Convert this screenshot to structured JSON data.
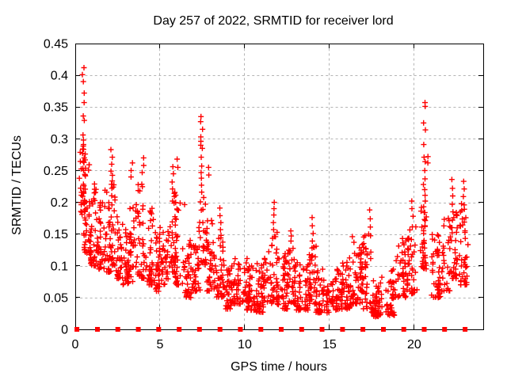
{
  "page": {
    "background": "#ffffff",
    "text_color": "#000000"
  },
  "chart_data": {
    "type": "scatter",
    "title": "Day 257 of 2022, SRMTID for receiver lord",
    "xlabel": "GPS time / hours",
    "ylabel": "SRMTID / TECUs",
    "xlim": [
      0,
      24.07
    ],
    "ylim": [
      0,
      0.45
    ],
    "xticks": {
      "values": [
        0,
        5,
        10,
        15,
        20
      ],
      "labels": [
        "0",
        "5",
        "10",
        "15",
        "20"
      ]
    },
    "yticks": {
      "values": [
        0,
        0.05,
        0.1,
        0.15,
        0.2,
        0.25,
        0.3,
        0.35,
        0.4,
        0.45
      ],
      "labels": [
        "0",
        "0.05",
        "0.1",
        "0.15",
        "0.2",
        "0.25",
        "0.3",
        "0.35",
        "0.4",
        "0.45"
      ]
    },
    "grid": true,
    "grid_color": "#b5b5b5",
    "border_color": "#000000",
    "marker": {
      "shape": "plus",
      "color": "#ff0000",
      "size": 7
    },
    "series": [
      {
        "name": "srmtid",
        "kind": "binned_scatter",
        "seed": 20220257,
        "bins": [
          [
            0.3,
            0.65,
            0.18,
            0.3,
            33
          ],
          [
            0.55,
            0.9,
            0.12,
            0.27,
            45
          ],
          [
            0.9,
            1.3,
            0.1,
            0.23,
            40
          ],
          [
            1.3,
            1.7,
            0.095,
            0.2,
            33
          ],
          [
            1.7,
            2.1,
            0.09,
            0.22,
            33
          ],
          [
            2.1,
            2.45,
            0.1,
            0.25,
            30
          ],
          [
            2.45,
            2.8,
            0.08,
            0.185,
            30
          ],
          [
            2.8,
            3.2,
            0.07,
            0.16,
            30
          ],
          [
            3.2,
            3.6,
            0.075,
            0.195,
            30
          ],
          [
            3.6,
            4.1,
            0.08,
            0.235,
            40
          ],
          [
            4.1,
            4.55,
            0.07,
            0.205,
            36
          ],
          [
            4.55,
            5.0,
            0.06,
            0.165,
            33
          ],
          [
            5.0,
            5.45,
            0.065,
            0.155,
            30
          ],
          [
            5.45,
            5.95,
            0.09,
            0.22,
            33
          ],
          [
            5.95,
            6.45,
            0.07,
            0.2,
            36
          ],
          [
            6.45,
            6.95,
            0.05,
            0.145,
            36
          ],
          [
            6.95,
            7.35,
            0.06,
            0.135,
            30
          ],
          [
            7.35,
            7.75,
            0.1,
            0.21,
            27
          ],
          [
            7.75,
            8.25,
            0.06,
            0.175,
            40
          ],
          [
            8.25,
            8.75,
            0.05,
            0.155,
            36
          ],
          [
            8.75,
            9.4,
            0.032,
            0.1,
            45
          ],
          [
            9.4,
            10.1,
            0.04,
            0.115,
            48
          ],
          [
            10.1,
            10.75,
            0.03,
            0.1,
            48
          ],
          [
            10.75,
            11.35,
            0.027,
            0.115,
            48
          ],
          [
            11.35,
            11.9,
            0.04,
            0.155,
            40
          ],
          [
            11.9,
            12.5,
            0.032,
            0.125,
            48
          ],
          [
            12.5,
            13.0,
            0.04,
            0.13,
            38
          ],
          [
            13.0,
            13.7,
            0.03,
            0.115,
            48
          ],
          [
            13.7,
            14.2,
            0.04,
            0.135,
            38
          ],
          [
            14.2,
            15.0,
            0.026,
            0.095,
            55
          ],
          [
            15.0,
            15.7,
            0.03,
            0.095,
            48
          ],
          [
            15.7,
            16.35,
            0.032,
            0.115,
            48
          ],
          [
            16.35,
            16.85,
            0.04,
            0.13,
            38
          ],
          [
            16.85,
            17.5,
            0.032,
            0.15,
            45
          ],
          [
            17.5,
            18.3,
            0.02,
            0.085,
            55
          ],
          [
            18.3,
            18.85,
            0.022,
            0.095,
            45
          ],
          [
            18.85,
            19.55,
            0.05,
            0.145,
            48
          ],
          [
            19.55,
            20.15,
            0.055,
            0.165,
            38
          ],
          [
            20.25,
            20.85,
            0.095,
            0.2,
            30
          ],
          [
            20.85,
            21.6,
            0.05,
            0.15,
            48
          ],
          [
            21.6,
            22.15,
            0.06,
            0.175,
            30
          ],
          [
            22.15,
            22.65,
            0.08,
            0.185,
            33
          ],
          [
            22.65,
            23.2,
            0.07,
            0.2,
            40
          ]
        ],
        "strings": [
          {
            "t": 0.48,
            "ys": [
              0.412,
              0.401,
              0.39,
              0.372,
              0.357,
              0.336,
              0.329,
              0.306,
              0.298,
              0.291,
              0.284,
              0.277,
              0.27,
              0.263
            ]
          },
          {
            "t": 2.15,
            "ys": [
              0.283,
              0.271,
              0.26,
              0.249
            ]
          },
          {
            "t": 3.35,
            "ys": [
              0.262,
              0.25,
              0.24
            ]
          },
          {
            "t": 4.0,
            "ys": [
              0.27,
              0.258,
              0.247
            ]
          },
          {
            "t": 5.75,
            "ys": [
              0.256,
              0.245,
              0.232,
              0.221
            ]
          },
          {
            "t": 6.05,
            "ys": [
              0.268,
              0.255
            ]
          },
          {
            "t": 7.45,
            "ys": [
              0.335,
              0.327,
              0.315,
              0.303,
              0.296,
              0.29,
              0.285,
              0.271,
              0.257,
              0.247,
              0.238,
              0.227,
              0.216
            ]
          },
          {
            "t": 7.9,
            "ys": [
              0.255,
              0.243
            ]
          },
          {
            "t": 8.55,
            "ys": [
              0.191,
              0.179,
              0.168,
              0.157
            ]
          },
          {
            "t": 11.7,
            "ys": [
              0.2,
              0.19,
              0.18,
              0.168,
              0.157,
              0.146
            ]
          },
          {
            "t": 12.7,
            "ys": [
              0.155,
              0.147,
              0.139
            ]
          },
          {
            "t": 14.0,
            "ys": [
              0.176,
              0.163,
              0.151,
              0.139,
              0.128
            ]
          },
          {
            "t": 16.4,
            "ys": [
              0.146,
              0.137
            ]
          },
          {
            "t": 17.35,
            "ys": [
              0.188,
              0.174,
              0.161,
              0.15
            ]
          },
          {
            "t": 19.9,
            "ys": [
              0.202,
              0.19,
              0.178
            ]
          },
          {
            "t": 20.6,
            "ys": [
              0.357,
              0.351,
              0.325,
              0.314,
              0.291,
              0.271,
              0.264,
              0.25,
              0.237,
              0.228,
              0.22,
              0.211,
              0.202,
              0.193,
              0.184,
              0.173,
              0.162,
              0.151,
              0.14,
              0.128,
              0.116,
              0.105
            ]
          },
          {
            "t": 20.78,
            "ys": [
              0.272,
              0.262
            ]
          },
          {
            "t": 22.25,
            "ys": [
              0.236,
              0.222,
              0.21,
              0.197,
              0.185,
              0.172,
              0.16
            ]
          },
          {
            "t": 22.9,
            "ys": [
              0.233,
              0.221,
              0.209,
              0.196
            ]
          }
        ]
      },
      {
        "name": "baseline-markers",
        "kind": "squares",
        "y": 0,
        "color": "#ff0000",
        "size": 6,
        "hours": [
          0.1,
          1.31,
          2.51,
          3.72,
          4.92,
          6.13,
          7.33,
          8.54,
          9.74,
          10.95,
          12.15,
          13.36,
          14.56,
          15.77,
          16.97,
          18.18,
          19.38,
          20.59,
          21.79,
          23.0
        ]
      }
    ]
  }
}
